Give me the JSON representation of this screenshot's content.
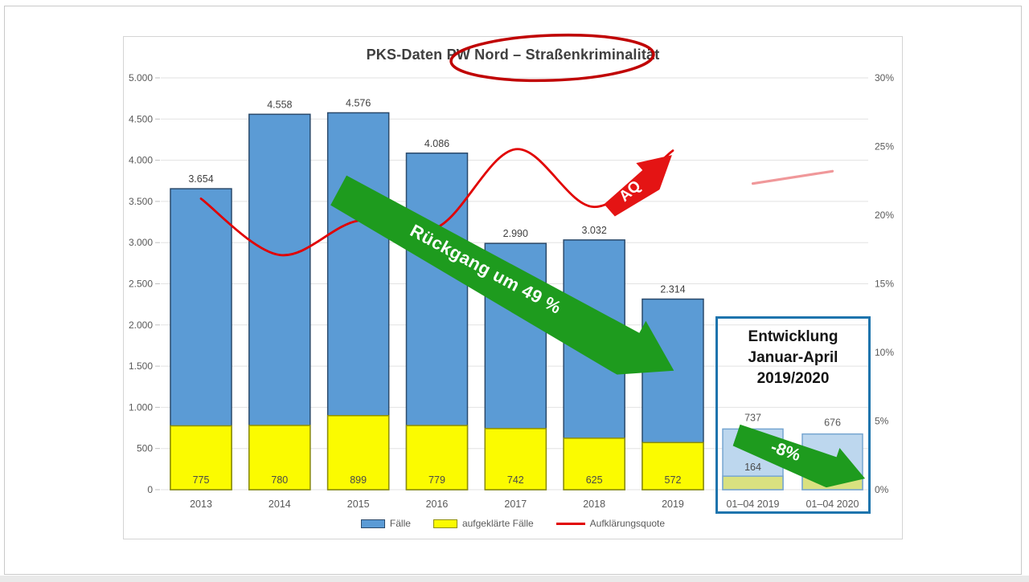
{
  "chart_data": {
    "type": "bar",
    "title": "PKS-Daten PW Nord – Straßenkriminalität",
    "categories": [
      "2013",
      "2014",
      "2015",
      "2016",
      "2017",
      "2018",
      "2019"
    ],
    "series": [
      {
        "name": "Fälle",
        "type": "bar",
        "color": "#5b9bd5",
        "values": [
          3654,
          4558,
          4576,
          4086,
          2990,
          3032,
          2314
        ]
      },
      {
        "name": "aufgeklärte Fälle",
        "type": "bar",
        "color": "#fbfb00",
        "values": [
          775,
          780,
          899,
          779,
          742,
          625,
          572
        ]
      },
      {
        "name": "Aufklärungsquote",
        "type": "line",
        "color": "#e10000",
        "unit": "%",
        "values": [
          21.2,
          17.1,
          19.6,
          19.1,
          24.8,
          20.6,
          24.7
        ]
      }
    ],
    "axis_left": {
      "min": 0,
      "max": 5000,
      "step": 500
    },
    "axis_right": {
      "min": 0,
      "max": 30,
      "step": 5,
      "unit": "%"
    },
    "grid": true,
    "legend_position": "bottom"
  },
  "inset": {
    "title_lines": [
      "Entwicklung",
      "Januar-April",
      "2019/2020"
    ],
    "categories": [
      "01–04 2019",
      "01–04 2020"
    ],
    "series": [
      {
        "name": "Fälle",
        "type": "bar",
        "color": "#bdd7ee",
        "values": [
          737,
          676
        ]
      },
      {
        "name": "aufgeklärte Fälle",
        "type": "bar",
        "color": "#d9e180",
        "values": [
          164,
          157
        ]
      }
    ],
    "preview_line_values_pct": [
      22.3,
      23.2
    ],
    "arrow_label": "-8%",
    "border_color": "#1e74ad"
  },
  "annotations": {
    "decline_arrow_label": "Rückgang um 49 %",
    "aq_arrow_label": "AQ",
    "arrow_green": "#1e9b1e",
    "arrow_red": "#e41414",
    "ellipse_color": "#c00000"
  },
  "legend": {
    "cases": "Fälle",
    "cleared": "aufgeklärte Fälle",
    "rate": "Aufklärungsquote"
  }
}
